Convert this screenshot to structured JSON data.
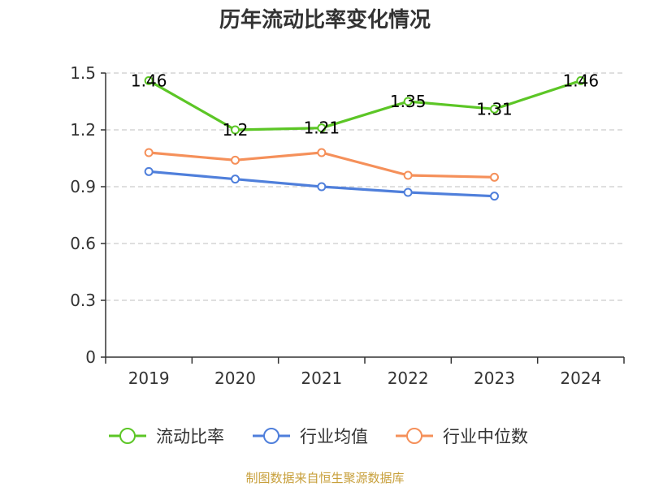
{
  "chart_data": {
    "type": "line",
    "title": "历年流动比率变化情况",
    "categories": [
      "2019",
      "2020",
      "2021",
      "2022",
      "2023",
      "2024"
    ],
    "ylim": [
      0,
      1.5
    ],
    "yticks": [
      "0",
      "0.3",
      "0.6",
      "0.9",
      "1.2",
      "1.5"
    ],
    "grid": true,
    "legend_position": "bottom",
    "series": [
      {
        "name": "流动比率",
        "color": "#5cc626",
        "values": [
          1.46,
          1.2,
          1.21,
          1.35,
          1.31,
          1.46
        ],
        "labels": [
          "1.46",
          "1.2",
          "1.21",
          "1.35",
          "1.31",
          "1.46"
        ]
      },
      {
        "name": "行业均值",
        "color": "#4f7fdb",
        "values": [
          0.98,
          0.94,
          0.9,
          0.87,
          0.85,
          null
        ]
      },
      {
        "name": "行业中位数",
        "color": "#f5905a",
        "values": [
          1.08,
          1.04,
          1.08,
          0.96,
          0.95,
          null
        ]
      }
    ]
  },
  "source_note": "制图数据来自恒生聚源数据库"
}
